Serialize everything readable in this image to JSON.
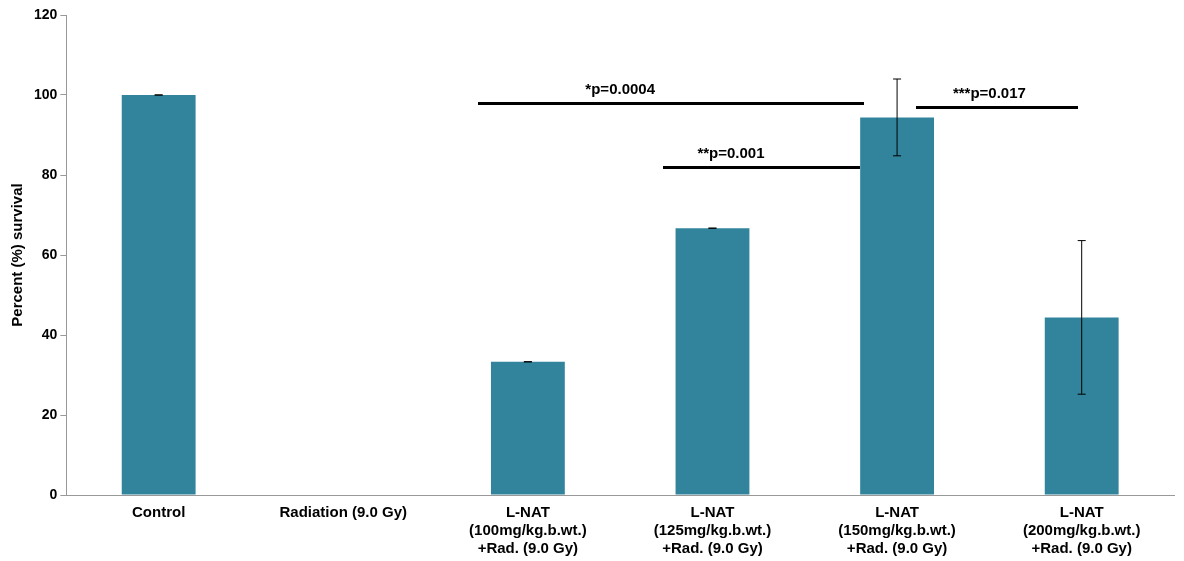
{
  "chart_data": {
    "type": "bar",
    "ylabel": "Percent (%) survival",
    "categories": [
      "Control",
      "Radiation (9.0 Gy)",
      "L-NAT (100mg/kg.b.wt.) +Rad. (9.0 Gy)",
      "L-NAT (125mg/kg.b.wt.) +Rad. (9.0 Gy)",
      "L-NAT (150mg/kg.b.wt.) +Rad. (9.0 Gy)",
      "L-NAT (200mg/kg.b.wt.) +Rad. (9.0 Gy)"
    ],
    "values": [
      100,
      0,
      33.3,
      66.7,
      94.4,
      44.4
    ],
    "errors": [
      0,
      null,
      0,
      0,
      9.6,
      19.2
    ],
    "color": "#31849b",
    "ylim": [
      0,
      120
    ],
    "yticks": [
      0,
      20,
      40,
      60,
      80,
      100,
      120
    ],
    "grid": false,
    "legend": false,
    "annotations": [
      "*p=0.0004",
      "**p=0.001",
      "***p=0.017"
    ]
  }
}
